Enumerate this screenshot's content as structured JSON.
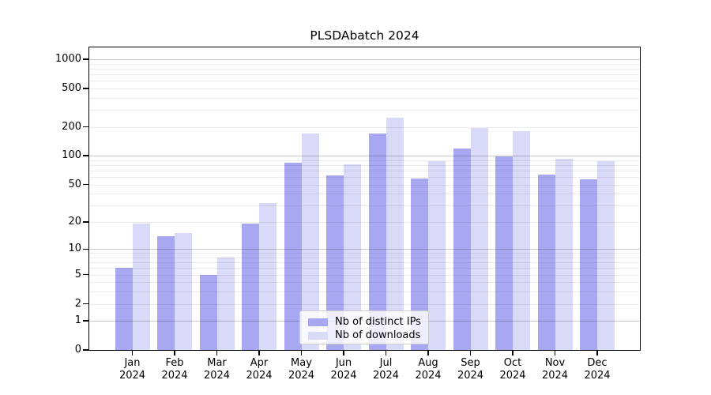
{
  "chart_data": {
    "type": "bar",
    "title": "PLSDAbatch 2024",
    "months": [
      "Jan",
      "Feb",
      "Mar",
      "Apr",
      "May",
      "Jun",
      "Jul",
      "Aug",
      "Sep",
      "Oct",
      "Nov",
      "Dec"
    ],
    "year": "2024",
    "series": [
      {
        "name": "Nb of distinct IPs",
        "color": "#a8a8f2",
        "values": [
          6,
          14,
          5,
          19,
          85,
          63,
          170,
          58,
          120,
          99,
          64,
          57
        ]
      },
      {
        "name": "Nb of downloads",
        "color": "#d9d9f8",
        "values": [
          19,
          15,
          8,
          32,
          172,
          82,
          250,
          88,
          195,
          181,
          93,
          88
        ]
      }
    ],
    "y_axis": {
      "scale": "log10(1+x)",
      "ticks": [
        0,
        1,
        2,
        5,
        10,
        20,
        50,
        100,
        200,
        500,
        1000
      ],
      "major_gridlines": [
        1,
        10,
        100,
        1000
      ],
      "top_value": 1325
    },
    "xlabel": "",
    "ylabel": "",
    "grid": true,
    "legend_location": "inside-bottom-center"
  }
}
